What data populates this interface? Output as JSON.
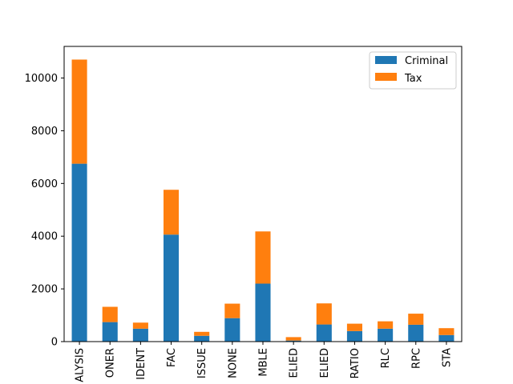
{
  "chart_data": {
    "type": "bar",
    "stacked": true,
    "title": "",
    "xlabel": "",
    "ylabel": "",
    "ylim": [
      0,
      11200
    ],
    "yticks": [
      0,
      2000,
      4000,
      6000,
      8000,
      10000
    ],
    "ytick_labels": [
      "0",
      "2000",
      "4000",
      "6000",
      "8000",
      "10000"
    ],
    "grid": false,
    "legend_position": "top-right",
    "categories": [
      "ALYSIS",
      "ONER",
      "IDENT",
      "FAC",
      "ISSUE",
      "NONE",
      "MBLE",
      "ELIED",
      "ELIED",
      "RATIO",
      "RLC",
      "RPC",
      "STA"
    ],
    "series": [
      {
        "name": "Criminal",
        "color": "#1f77b4",
        "values": [
          6750,
          740,
          490,
          4060,
          220,
          890,
          2200,
          40,
          650,
          400,
          490,
          640,
          250
        ]
      },
      {
        "name": "Tax",
        "color": "#ff7f0e",
        "values": [
          3950,
          580,
          230,
          1700,
          150,
          550,
          1980,
          130,
          800,
          280,
          280,
          420,
          260
        ]
      }
    ]
  }
}
